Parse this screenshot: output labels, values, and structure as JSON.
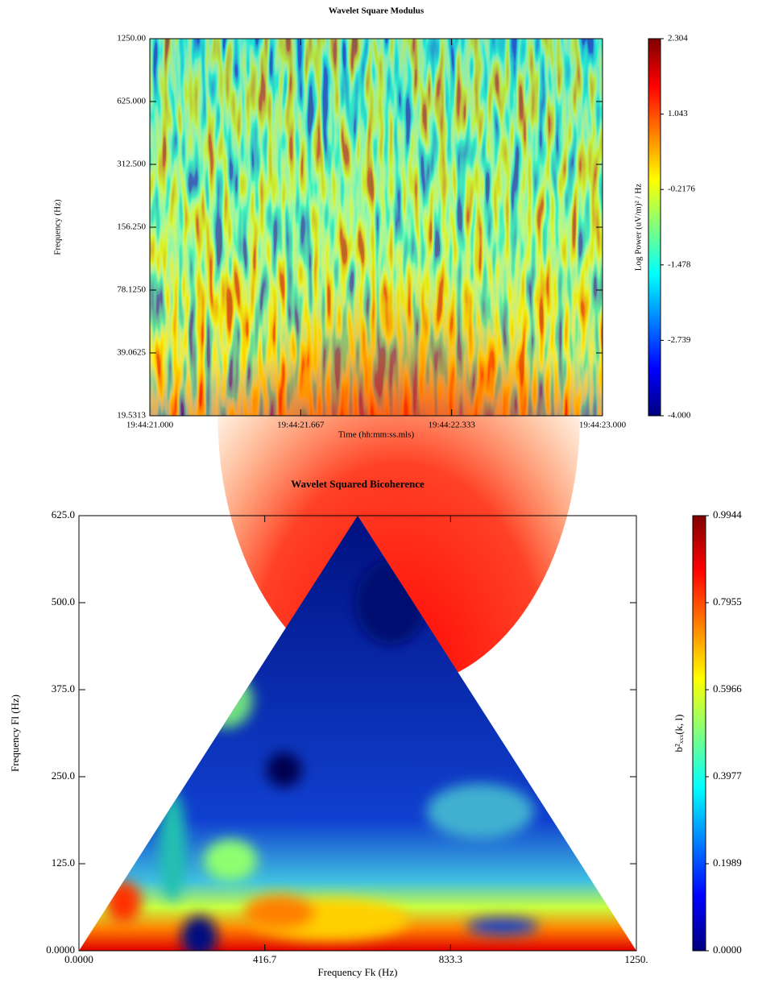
{
  "chart_data": [
    {
      "type": "heatmap",
      "title": "Wavelet Square Modulus",
      "xlabel": "Time (hh:mm:ss.mls)",
      "ylabel": "Frequency (Hz)",
      "colorbar_label": "Log Power (uV/m)² / Hz",
      "xticks": [
        "19:44:21.000",
        "19:44:21.667",
        "19:44:22.333",
        "19:44:23.000"
      ],
      "ylim": [
        19.5313,
        1250
      ],
      "log_y": true,
      "yticks": [
        {
          "value": 19.5313,
          "label": "19.5313"
        },
        {
          "value": 39.0625,
          "label": "39.0625"
        },
        {
          "value": 78.125,
          "label": "78.1250"
        },
        {
          "value": 156.25,
          "label": "156.250"
        },
        {
          "value": 312.5,
          "label": "312.500"
        },
        {
          "value": 625,
          "label": "625.000"
        },
        {
          "value": 1250,
          "label": "1250.00"
        }
      ],
      "clim": [
        -4,
        2.304
      ],
      "cticks": [
        {
          "value": -4,
          "label": "-4.000"
        },
        -2.739,
        -1.478,
        -0.2176,
        1.043,
        2.304
      ],
      "colormap": [
        "#00007f",
        "#0000ff",
        "#007fff",
        "#00ffff",
        "#7fff7f",
        "#ffff00",
        "#ff7f00",
        "#ff0000",
        "#7f0000"
      ]
    },
    {
      "type": "heatmap",
      "title": "Wavelet Squared Bicoherence",
      "xlabel": "Frequency Fk (Hz)",
      "ylabel": "Frequency Fl (Hz)",
      "colorbar_label": "b²ₓₓₓ(k, l)",
      "xlim": [
        0,
        1250
      ],
      "xticks": [
        {
          "value": 0,
          "label": "0.0000"
        },
        416.7,
        833.3,
        {
          "value": 1250,
          "label": "1250."
        }
      ],
      "ylim": [
        0,
        625
      ],
      "yticks": [
        {
          "value": 0,
          "label": "0.0000"
        },
        {
          "value": 125,
          "label": "125.0"
        },
        {
          "value": 250,
          "label": "250.0"
        },
        {
          "value": 375,
          "label": "375.0"
        },
        {
          "value": 500,
          "label": "500.0"
        },
        {
          "value": 625,
          "label": "625.0"
        }
      ],
      "clim": [
        0,
        0.9944
      ],
      "cticks": [
        {
          "value": 0,
          "label": "0.0000"
        },
        0.1989,
        0.3977,
        0.5966,
        0.7955,
        0.9944
      ],
      "colormap": [
        "#00007f",
        "#0000ff",
        "#007fff",
        "#00ffff",
        "#7fff7f",
        "#ffff00",
        "#ff7f00",
        "#ff0000",
        "#7f0000"
      ]
    }
  ]
}
